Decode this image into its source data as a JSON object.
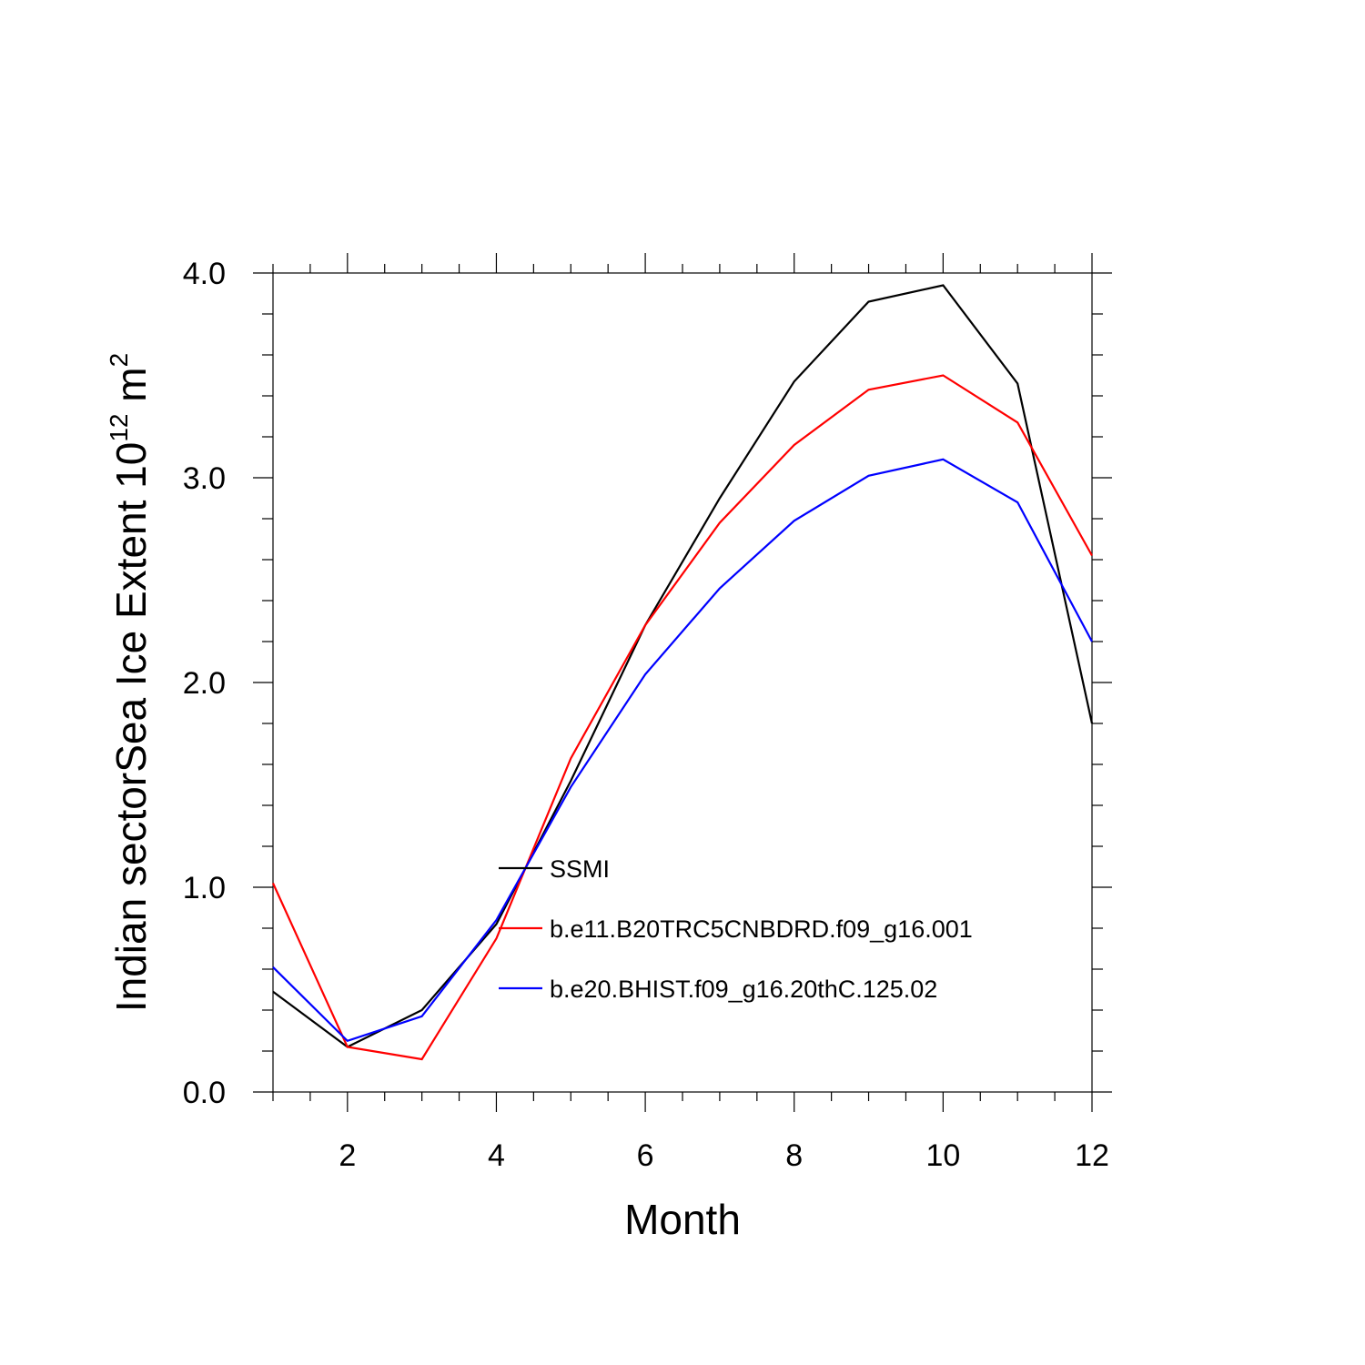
{
  "chart_data": {
    "type": "line",
    "title": "",
    "xlabel": "Month",
    "ylabel_main": "Indian sectorSea Ice Extent 10",
    "ylabel_sup": "12",
    "ylabel_unit": " m",
    "ylabel_unit_sup": "2",
    "xlim": [
      1,
      12
    ],
    "ylim": [
      0,
      4
    ],
    "x_ticks": [
      2,
      4,
      6,
      8,
      10,
      12
    ],
    "x_tick_labels": [
      "2",
      "4",
      "6",
      "8",
      "10",
      "12"
    ],
    "y_ticks": [
      0,
      1,
      2,
      3,
      4
    ],
    "y_tick_labels": [
      "0.0",
      "1.0",
      "2.0",
      "3.0",
      "4.0"
    ],
    "x": [
      1,
      2,
      3,
      4,
      5,
      6,
      7,
      8,
      9,
      10,
      11,
      12
    ],
    "series": [
      {
        "name": "SSMI",
        "color": "#000000",
        "values": [
          0.49,
          0.22,
          0.4,
          0.82,
          1.52,
          2.28,
          2.9,
          3.47,
          3.86,
          3.94,
          3.46,
          1.8
        ]
      },
      {
        "name": "b.e11.B20TRC5CNBDRD.f09_g16.001",
        "color": "#ff0000",
        "values": [
          1.02,
          0.22,
          0.16,
          0.75,
          1.63,
          2.28,
          2.78,
          3.16,
          3.43,
          3.5,
          3.27,
          2.62
        ]
      },
      {
        "name": "b.e20.BHIST.f09_g16.20thC.125.02",
        "color": "#0000ff",
        "values": [
          0.61,
          0.25,
          0.37,
          0.84,
          1.49,
          2.04,
          2.46,
          2.79,
          3.01,
          3.09,
          2.88,
          2.2
        ]
      }
    ],
    "grid": false,
    "legend_position": "center"
  }
}
